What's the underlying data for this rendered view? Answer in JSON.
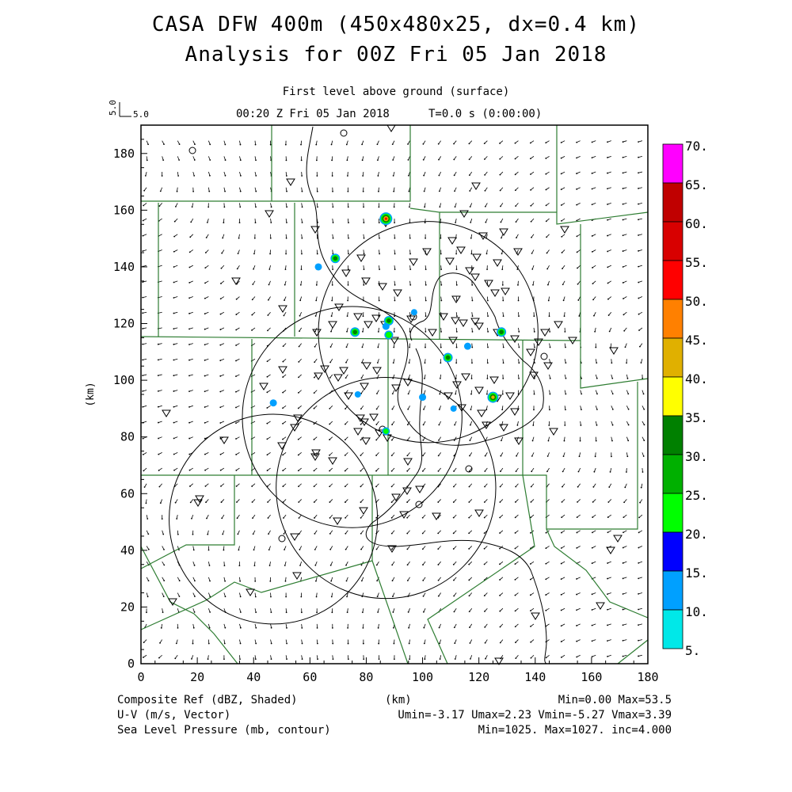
{
  "header": {
    "title_line1": "CASA DFW 400m (450x480x25, dx=0.4 km)",
    "title_line2": "Analysis for 00Z Fri 05 Jan 2018",
    "level": "First level above ground (surface)",
    "time_line": "00:20 Z Fri 05 Jan 2018",
    "time_t": "T=0.0 s (0:00:00)",
    "vector_ref_vertical": "5.0",
    "vector_ref_horizontal": "5.0"
  },
  "map": {
    "x_axis_label": "(km)",
    "y_axis_label": "(km)",
    "x_ticks": [
      "0",
      "20",
      "40",
      "60",
      "80",
      "100",
      "120",
      "140",
      "160",
      "180"
    ],
    "y_ticks": [
      "0",
      "20",
      "40",
      "60",
      "80",
      "100",
      "120",
      "140",
      "160",
      "180"
    ],
    "x_range_km": [
      0,
      180
    ],
    "y_range_km": [
      0,
      190
    ],
    "radar_range_rings": [
      {
        "center_km": [
          47,
          51
        ],
        "radius_km": 37
      },
      {
        "center_km": [
          87,
          62
        ],
        "radius_km": 39
      },
      {
        "center_km": [
          75,
          87
        ],
        "radius_km": 39
      },
      {
        "center_km": [
          102,
          117
        ],
        "radius_km": 39
      }
    ],
    "reflectivity_cells": [
      {
        "x": 87,
        "y": 157,
        "dbz": 50
      },
      {
        "x": 69,
        "y": 143,
        "dbz": 30
      },
      {
        "x": 63,
        "y": 140,
        "dbz": 15
      },
      {
        "x": 76,
        "y": 117,
        "dbz": 30
      },
      {
        "x": 88,
        "y": 121,
        "dbz": 30
      },
      {
        "x": 88,
        "y": 116,
        "dbz": 25
      },
      {
        "x": 87,
        "y": 119,
        "dbz": 15
      },
      {
        "x": 97,
        "y": 124,
        "dbz": 10
      },
      {
        "x": 109,
        "y": 108,
        "dbz": 30
      },
      {
        "x": 116,
        "y": 112,
        "dbz": 15
      },
      {
        "x": 128,
        "y": 117,
        "dbz": 30
      },
      {
        "x": 125,
        "y": 94,
        "dbz": 40
      },
      {
        "x": 47,
        "y": 92,
        "dbz": 15
      },
      {
        "x": 77,
        "y": 95,
        "dbz": 10
      },
      {
        "x": 87,
        "y": 82,
        "dbz": 20
      },
      {
        "x": 100,
        "y": 94,
        "dbz": 15
      },
      {
        "x": 111,
        "y": 90,
        "dbz": 10
      }
    ]
  },
  "colorbar": {
    "labels": [
      "70.",
      "65.",
      "60.",
      "55.",
      "50.",
      "45.",
      "40.",
      "35.",
      "30.",
      "25.",
      "20.",
      "15.",
      "10.",
      "5."
    ],
    "colors": [
      "#ff00ff",
      "#c00000",
      "#d80000",
      "#ff0000",
      "#ff8000",
      "#e0b000",
      "#ffff00",
      "#008000",
      "#00b000",
      "#00ff00",
      "#0000ff",
      "#00a0ff",
      "#00e8e8"
    ]
  },
  "footer": {
    "ref_label": "Composite Ref (dBZ, Shaded)",
    "uv_label": "U-V (m/s, Vector)",
    "slp_label": "Sea Level Pressure (mb, contour)",
    "km_label": "(km)",
    "ref_minmax": "Min=0.00 Max=53.5",
    "uv_minmax": "Umin=-3.17 Umax=2.23 Vmin=-5.27 Vmax=3.39",
    "slp_minmax": "Min=1025. Max=1027. inc=4.000"
  }
}
